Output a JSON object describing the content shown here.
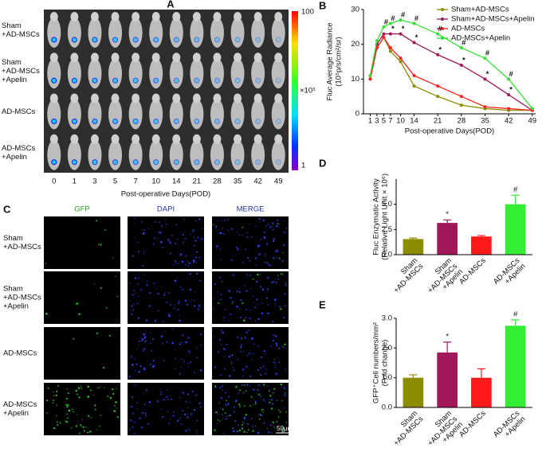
{
  "panel_a": {
    "label": "A",
    "rows": [
      [
        "Sham",
        "+AD-MSCs"
      ],
      [
        "Sham",
        "+AD-MSCs",
        "+Apelin"
      ],
      [
        "AD-MSCs"
      ],
      [
        "AD-MSCs",
        "+Apelin"
      ]
    ],
    "days": [
      0,
      1,
      3,
      5,
      7,
      10,
      14,
      21,
      28,
      35,
      42,
      49
    ],
    "xlabel": "Post-operative Days(POD)",
    "colorbar": {
      "ticks": [
        100,
        1
      ],
      "unit": "×10⁵"
    }
  },
  "panel_c": {
    "label": "C",
    "columns": [
      "GFP",
      "DAPI",
      "MERGE"
    ],
    "rows": [
      [
        "Sham",
        "+AD-MSCs"
      ],
      [
        "Sham",
        "+AD-MSCs",
        "+Apelin"
      ],
      [
        "AD-MSCs"
      ],
      [
        "AD-MSCs",
        "+Apelin"
      ]
    ],
    "scale_bar": "50μm"
  },
  "chart_data": [
    {
      "type": "line",
      "label": "B",
      "ylabel": [
        "Fluc Average Radiance",
        "(10⁵p/s/cm²/sr)"
      ],
      "xlabel": "Post-operative Days(POD)",
      "x": [
        1,
        3,
        5,
        7,
        10,
        14,
        21,
        28,
        35,
        42,
        49
      ],
      "xlim": [
        -1,
        50
      ],
      "xticks": [
        1,
        3,
        5,
        7,
        10,
        14,
        21,
        28,
        35,
        42,
        49
      ],
      "ylim": [
        0,
        30
      ],
      "yticks": [
        0,
        10,
        20,
        30
      ],
      "series": [
        {
          "name": "Sham+AD-MSCs",
          "color": "#8c8c00",
          "values": [
            10,
            19,
            22,
            18,
            15,
            8,
            5,
            2.5,
            1.5,
            1,
            1
          ]
        },
        {
          "name": "Sham+AD-MSCs+Apelin",
          "color": "#a0185a",
          "values": [
            11,
            20,
            23,
            23,
            23,
            20.5,
            17,
            14,
            10,
            5.5,
            1
          ]
        },
        {
          "name": "AD-MSCs",
          "color": "#ff2020",
          "values": [
            10,
            19,
            22,
            19,
            16,
            11,
            8,
            5,
            2,
            1.5,
            1
          ]
        },
        {
          "name": "AD-MSCs+Apelin",
          "color": "#33e033",
          "values": [
            11,
            21,
            25,
            26,
            27,
            26,
            23,
            19,
            16,
            10,
            1.5
          ]
        }
      ],
      "annotations": [
        {
          "text": "#",
          "x": 5,
          "y": 25
        },
        {
          "text": "#",
          "x": 7,
          "y": 26
        },
        {
          "text": "#",
          "x": 10,
          "y": 27
        },
        {
          "text": "#",
          "x": 14,
          "y": 26
        },
        {
          "text": "#",
          "x": 21,
          "y": 23
        },
        {
          "text": "#",
          "x": 28,
          "y": 19
        },
        {
          "text": "#",
          "x": 35,
          "y": 16
        },
        {
          "text": "#",
          "x": 42,
          "y": 10
        },
        {
          "text": "*",
          "x": 7,
          "y": 23
        },
        {
          "text": "*",
          "x": 10,
          "y": 23
        },
        {
          "text": "*",
          "x": 14,
          "y": 20.5
        },
        {
          "text": "*",
          "x": 21,
          "y": 17
        },
        {
          "text": "*",
          "x": 28,
          "y": 14
        },
        {
          "text": "*",
          "x": 35,
          "y": 10
        },
        {
          "text": "*",
          "x": 42,
          "y": 5.5
        }
      ]
    },
    {
      "type": "bar",
      "label": "D",
      "ylabel": [
        "Fluc Enzymatic Activity",
        "(Relative Light Unit × 10⁶)"
      ],
      "categories": [
        [
          "Sham",
          "+AD-MSCs"
        ],
        [
          "Sham",
          "+AD-MSCs",
          "+Apelin"
        ],
        [
          "AD-MSCs"
        ],
        [
          "AD-MSCs",
          "+Apelin"
        ]
      ],
      "values": [
        1.55,
        3.15,
        1.8,
        5.0
      ],
      "errors": [
        0.1,
        0.3,
        0.1,
        0.9
      ],
      "colors": [
        "#8c8c00",
        "#a0185a",
        "#ff1a1a",
        "#33ee33"
      ],
      "annotations": [
        null,
        "*",
        null,
        "#"
      ],
      "ylim": [
        0,
        7.5
      ],
      "yticks": [
        {
          "value": 0,
          "label": "0.0"
        },
        {
          "value": 2.5,
          "label": "2.5"
        },
        {
          "value": 5,
          "label": "5.0"
        }
      ]
    },
    {
      "type": "bar",
      "label": "E",
      "ylabel": [
        "GFP⁺Cell numbers/mm²",
        "(Fold change)"
      ],
      "categories": [
        [
          "Sham",
          "+AD-MSCs"
        ],
        [
          "Sham",
          "+AD-MSCs",
          "+Apelin"
        ],
        [
          "AD-MSCs"
        ],
        [
          "AD-MSCs",
          "+Apelin"
        ]
      ],
      "values": [
        1.0,
        1.85,
        1.0,
        2.75
      ],
      "errors": [
        0.1,
        0.35,
        0.3,
        0.2
      ],
      "colors": [
        "#8c8c00",
        "#a0185a",
        "#ff1a1a",
        "#33ee33"
      ],
      "annotations": [
        null,
        "*",
        null,
        "#"
      ],
      "ylim": [
        0,
        3
      ],
      "yticks": [
        {
          "value": 0,
          "label": "0.0"
        },
        {
          "value": 1,
          "label": "1.0"
        },
        {
          "value": 2,
          "label": "2.0"
        },
        {
          "value": 3,
          "label": "3.0"
        }
      ]
    }
  ]
}
